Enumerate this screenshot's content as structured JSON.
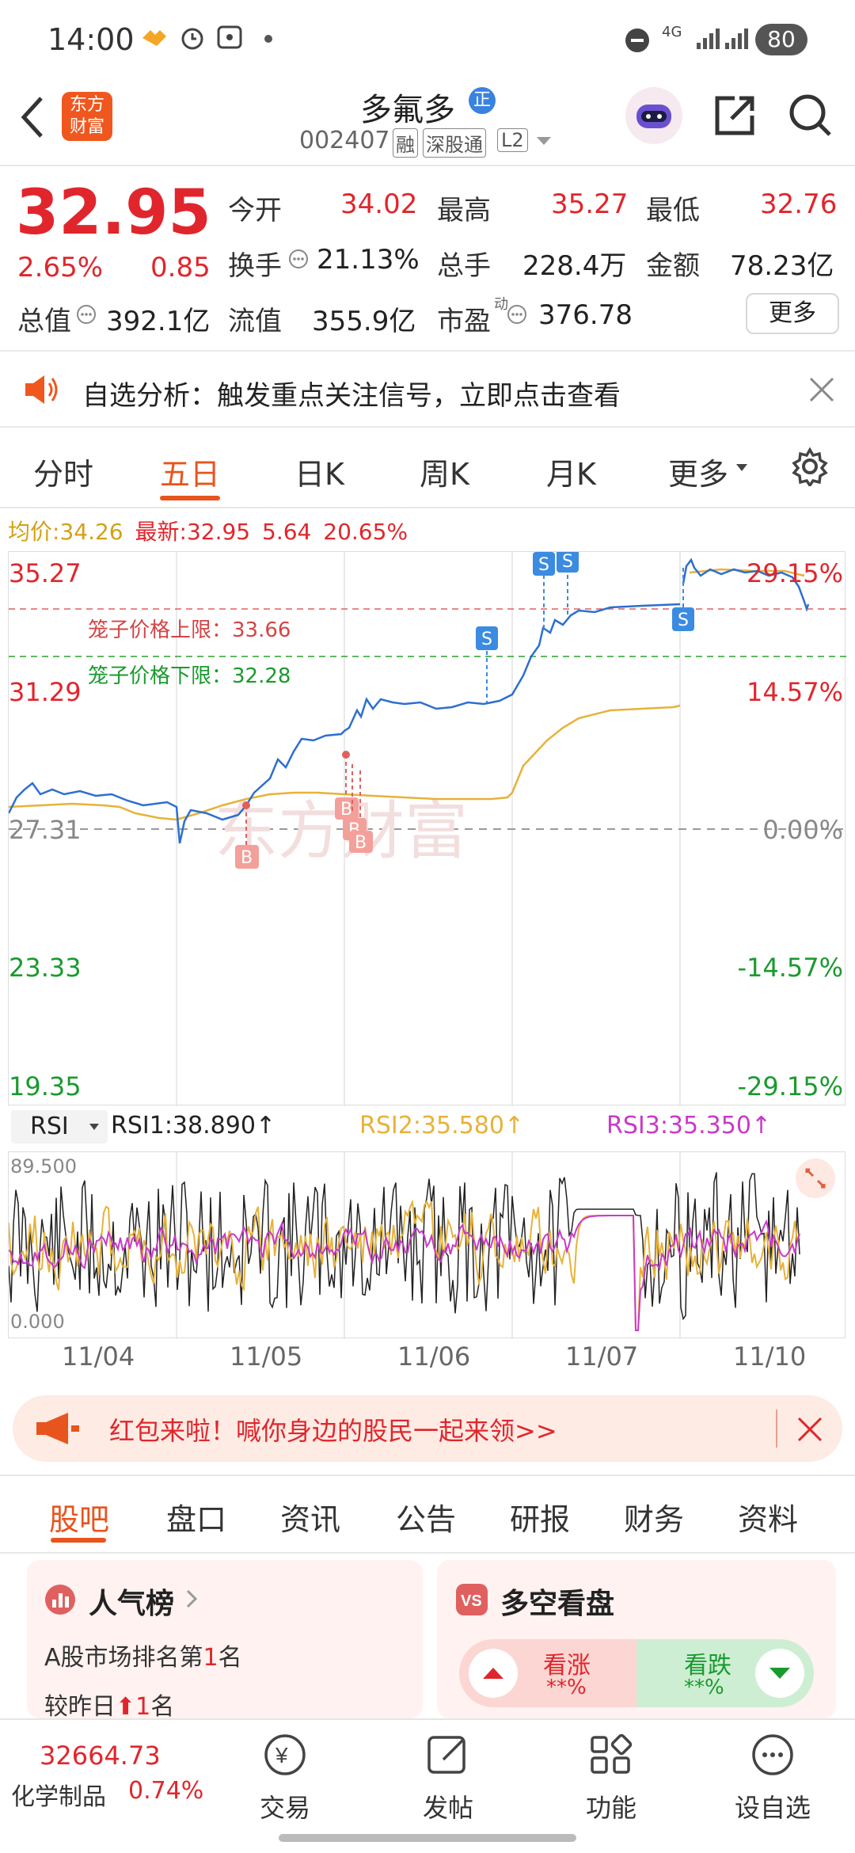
{
  "status": {
    "time": "14:00",
    "battery": "80",
    "network": "4G"
  },
  "header": {
    "name": "多氟多",
    "badge": "正",
    "code": "002407",
    "tags": [
      "融",
      "深股通",
      "L2"
    ],
    "logo_top": "东方",
    "logo_bottom": "财富"
  },
  "quote": {
    "price": "32.95",
    "change_pct": "2.65%",
    "change": "0.85",
    "open_label": "今开",
    "open": "34.02",
    "high_label": "最高",
    "high": "35.27",
    "low_label": "最低",
    "low": "32.76",
    "turnover_label": "换手",
    "turnover": "21.13%",
    "volume_label": "总手",
    "volume": "228.4万",
    "amount_label": "金额",
    "amount": "78.23亿",
    "mktcap_label": "总值",
    "mktcap": "392.1亿",
    "float_label": "流值",
    "float": "355.9亿",
    "pe_label": "市盈",
    "pe_sup": "动",
    "pe": "376.78",
    "more": "更多"
  },
  "notice": {
    "text": "自选分析：触发重点关注信号，立即点击查看"
  },
  "chart_tabs": [
    "分时",
    "五日",
    "日K",
    "周K",
    "月K",
    "更多"
  ],
  "chart_info": {
    "avg_label": "均价:",
    "avg": "34.26",
    "last_label": "最新:",
    "last": "32.95",
    "chg": "5.64",
    "chg_pct": "20.65%"
  },
  "chart": {
    "left_ticks": [
      "35.27",
      "31.29",
      "27.31",
      "23.33",
      "19.35"
    ],
    "right_ticks": [
      "29.15%",
      "14.57%",
      "0.00%",
      "-14.57%",
      "-29.15%"
    ],
    "upper_limit": "笼子价格上限：33.66",
    "lower_limit": "笼子价格下限：32.28",
    "watermark": "东方财富",
    "dates": [
      "11/04",
      "11/05",
      "11/06",
      "11/07",
      "11/10"
    ]
  },
  "rsi": {
    "selector": "RSI",
    "rsi1": "RSI1:38.890↑",
    "rsi2": "RSI2:35.580↑",
    "rsi3": "RSI3:35.350↑",
    "top": "89.500",
    "bottom": "0.000"
  },
  "promo": {
    "text": "红包来啦！喊你身边的股民一起来领>>"
  },
  "bottom_tabs": [
    "股吧",
    "盘口",
    "资讯",
    "公告",
    "研报",
    "财务",
    "资料"
  ],
  "cards": {
    "rank_title": "人气榜",
    "rank_line1_pre": "A股市场排名第",
    "rank_line1_num": "1",
    "rank_line1_post": "名",
    "rank_line2_pre": "较昨日",
    "rank_line2_num": "1",
    "rank_line2_post": "名",
    "vs_title": "多空看盘",
    "up_label": "看涨",
    "up_val": "**%",
    "down_label": "看跌",
    "down_val": "**%"
  },
  "footer": {
    "index_value": "32664.73",
    "index_name": "化学制品",
    "index_pct": "0.74%",
    "items": [
      "交易",
      "发帖",
      "功能",
      "设自选"
    ]
  }
}
